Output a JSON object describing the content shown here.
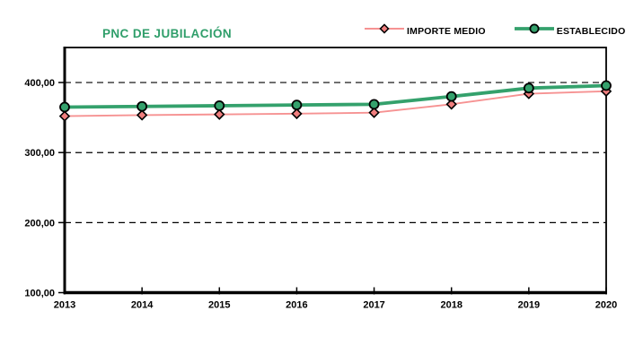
{
  "page": {
    "background": "#ffffff",
    "text_color": "#000000"
  },
  "chart_data": {
    "type": "line",
    "title": "PNC DE JUBILACIÓN",
    "title_color": "#2f9e6a",
    "categories": [
      "2013",
      "2014",
      "2015",
      "2016",
      "2017",
      "2018",
      "2019",
      "2020"
    ],
    "series": [
      {
        "name": "IMPORTE MEDIO",
        "marker": "diamond",
        "color": "#f69292",
        "marker_fill": "#f07e7e",
        "line_width": 1.9,
        "values": [
          352.0,
          353.5,
          354.5,
          355.5,
          357.0,
          369.0,
          384.0,
          387.5
        ]
      },
      {
        "name": "ESTABLECIDO",
        "marker": "circle",
        "color": "#34a16c",
        "marker_fill": "#34a16c",
        "line_width": 3.8,
        "values": [
          364.9,
          365.9,
          366.9,
          367.9,
          368.9,
          380.1,
          392.0,
          395.6
        ]
      }
    ],
    "xlabel": "",
    "ylabel": "",
    "ylim": [
      100,
      450
    ],
    "y_ticks": [
      {
        "v": 100,
        "label": "100,00"
      },
      {
        "v": 200,
        "label": "200,00"
      },
      {
        "v": 300,
        "label": "300,00"
      },
      {
        "v": 400,
        "label": "400,00"
      }
    ],
    "grid_values": [
      200,
      300,
      400
    ],
    "grid": "dashed-horizontal",
    "legend_position": "top-right",
    "axis_color": "#000000"
  }
}
